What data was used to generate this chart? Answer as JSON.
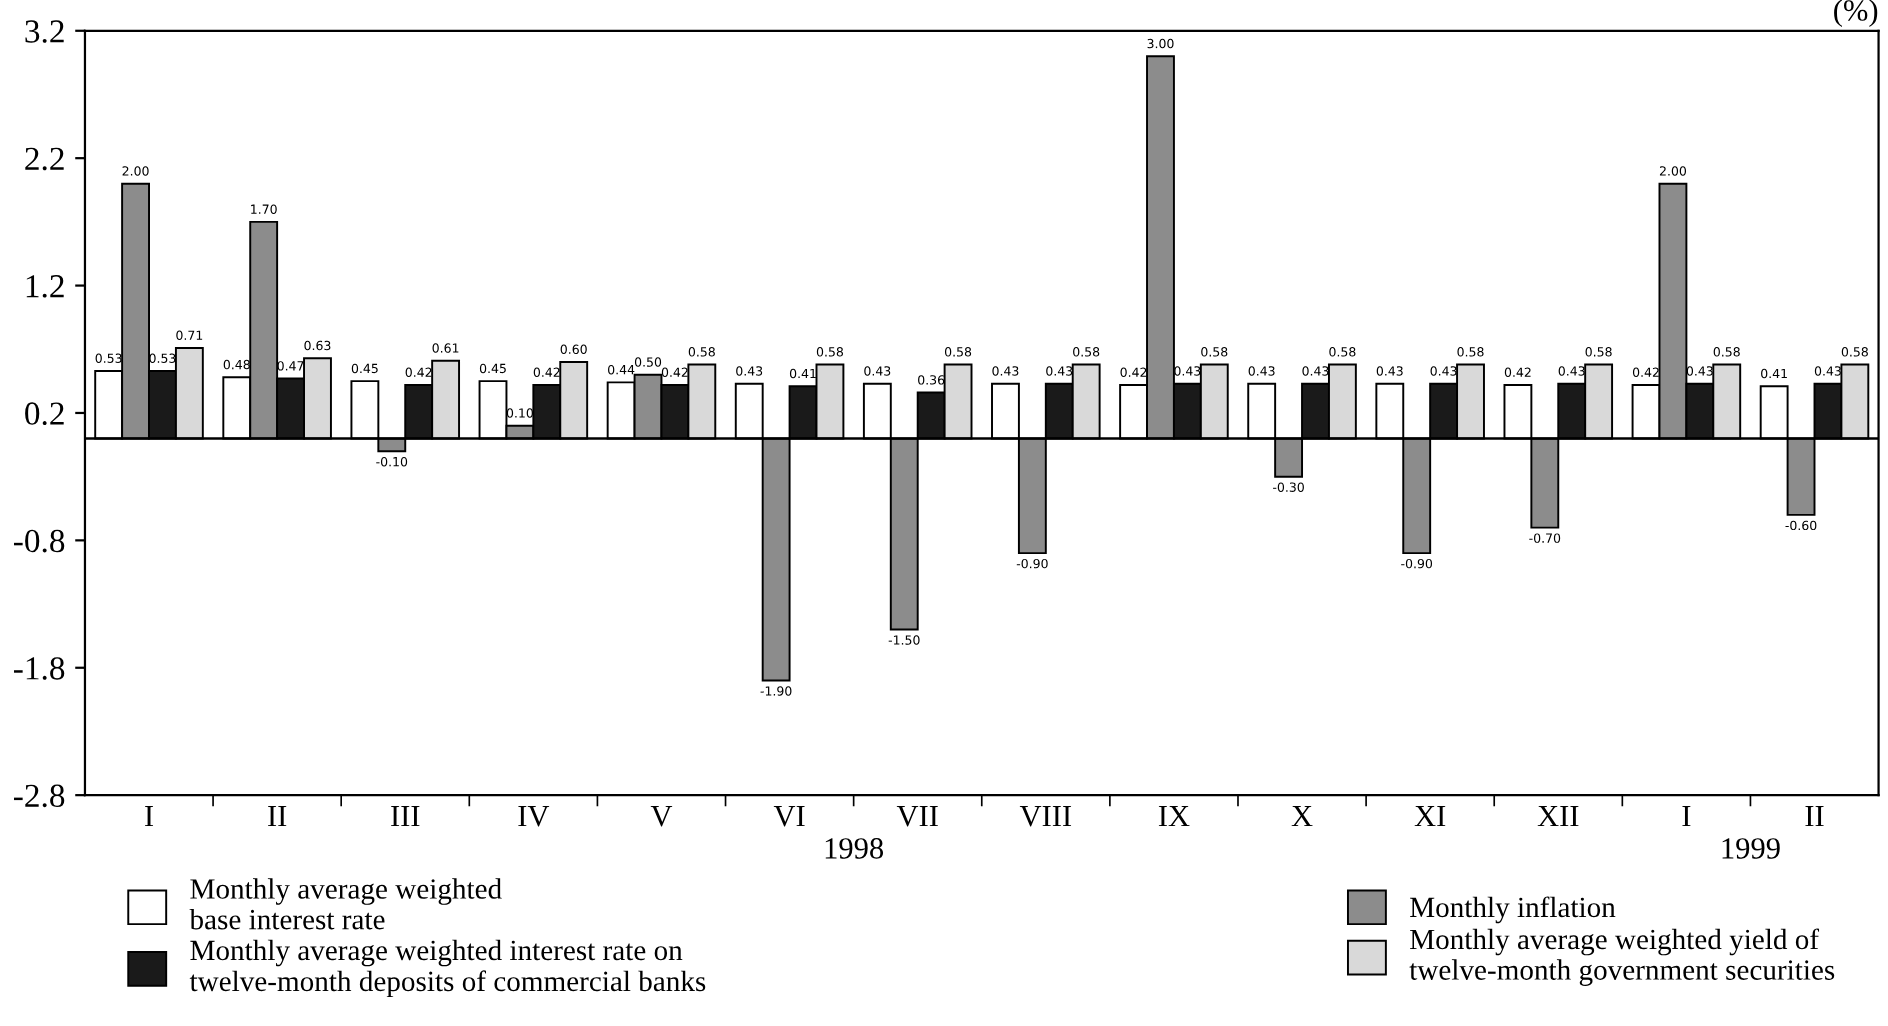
{
  "chart_data": {
    "type": "bar",
    "ylabel": "(%)",
    "categories": [
      "I",
      "II",
      "III",
      "IV",
      "V",
      "VI",
      "VII",
      "VIII",
      "IX",
      "X",
      "XI",
      "XII",
      "I",
      "II"
    ],
    "series": [
      {
        "name": "Monthly average weighted\nbase interest rate",
        "color": "#ffffff",
        "values": [
          0.53,
          0.48,
          0.45,
          0.45,
          0.44,
          0.43,
          0.43,
          0.43,
          0.42,
          0.43,
          0.43,
          0.42,
          0.42,
          0.41
        ],
        "value_labels": [
          "0.53",
          "0.48",
          "0.45",
          "0.45",
          "0.44",
          "0.43",
          "0.43",
          "0.43",
          "0.42",
          "0.43",
          "0.43",
          "0.42",
          "0.42",
          "0.41"
        ]
      },
      {
        "name": "Monthly inflation",
        "color": "#8c8c8c",
        "values": [
          2.0,
          1.7,
          -0.1,
          0.1,
          0.5,
          -1.9,
          -1.5,
          -0.9,
          3.0,
          -0.3,
          -0.9,
          -0.7,
          2.0,
          -0.6
        ],
        "value_labels": [
          "2.00",
          "1.70",
          "-0.10",
          "0.10",
          "0.50",
          "-1.90",
          "-1.50",
          "-0.90",
          "3.00",
          "-0.30",
          "-0.90",
          "-0.70",
          "2.00",
          "-0.60"
        ]
      },
      {
        "name": "Monthly average weighted interest rate on\ntwelve-month deposits of commercial banks",
        "color": "#1a1a1a",
        "values": [
          0.53,
          0.47,
          0.42,
          0.42,
          0.42,
          0.41,
          0.36,
          0.43,
          0.43,
          0.43,
          0.43,
          0.43,
          0.43,
          0.43
        ],
        "value_labels": [
          "0.53",
          "0.47",
          "0.42",
          "0.42",
          "0.42",
          "0.41",
          "0.36",
          "0.43",
          "0.43",
          "0.43",
          "0.43",
          "0.43",
          "0.43",
          "0.43"
        ]
      },
      {
        "name": "Monthly average weighted yield of\ntwelve-month government securities",
        "color": "#d9d9d9",
        "values": [
          0.71,
          0.63,
          0.61,
          0.6,
          0.58,
          0.58,
          0.58,
          0.58,
          0.58,
          0.58,
          0.58,
          0.58,
          0.58,
          0.58
        ],
        "value_labels": [
          "0.71",
          "0.63",
          "0.61",
          "0.60",
          "0.58",
          "0.58",
          "0.58",
          "0.58",
          "0.58",
          "0.58",
          "0.58",
          "0.58",
          "0.58",
          "0.58"
        ]
      }
    ],
    "ylim": [
      -2.8,
      3.2
    ],
    "yticks": [
      -2.8,
      -1.8,
      -0.8,
      0.2,
      1.2,
      2.2,
      3.2
    ],
    "annotations": [
      "1998",
      "1999"
    ],
    "legend": "bottom",
    "grid": false
  }
}
